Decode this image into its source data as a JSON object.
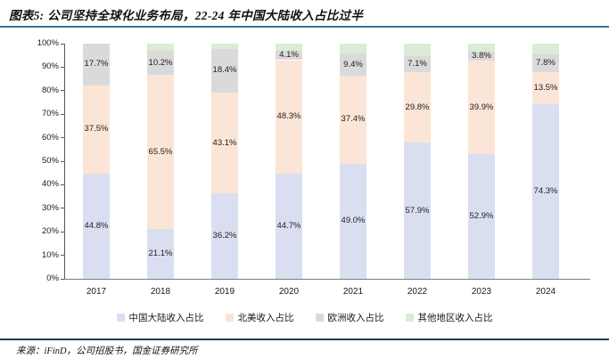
{
  "title": "图表5: 公司坚持全球化业务布局，22-24 年中国大陆收入占比过半",
  "footer": {
    "source_label": "来源：iFinD，公司招股书，国金证券研究所"
  },
  "chart_data": {
    "type": "bar",
    "stacked": true,
    "title": "图表5: 公司坚持全球化业务布局，22-24 年中国大陆收入占比过半",
    "xlabel": "",
    "ylabel": "",
    "ylim": [
      0,
      100
    ],
    "ytick_step": 10,
    "ytick_labels": [
      "0%",
      "10%",
      "20%",
      "30%",
      "40%",
      "50%",
      "60%",
      "70%",
      "80%",
      "90%",
      "100%"
    ],
    "grid": false,
    "legend_position": "bottom",
    "categories": [
      "2017",
      "2018",
      "2019",
      "2020",
      "2021",
      "2022",
      "2023",
      "2024"
    ],
    "series": [
      {
        "name": "中国大陆收入占比",
        "color": "#d9dff0",
        "show_labels": true,
        "values": [
          44.8,
          21.1,
          36.2,
          44.7,
          49.0,
          57.9,
          52.9,
          74.3
        ]
      },
      {
        "name": "北美收入占比",
        "color": "#fbe5d6",
        "show_labels": true,
        "values": [
          37.5,
          65.5,
          43.1,
          48.3,
          37.4,
          29.8,
          39.9,
          13.5
        ]
      },
      {
        "name": "欧洲收入占比",
        "color": "#dadada",
        "show_labels": true,
        "values": [
          17.7,
          10.2,
          18.4,
          4.1,
          9.4,
          7.1,
          3.8,
          7.8
        ]
      },
      {
        "name": "其他地区收入占比",
        "color": "#dcebd5",
        "show_labels": false,
        "values": [
          0.0,
          3.2,
          2.3,
          2.9,
          4.2,
          5.2,
          3.4,
          4.4
        ]
      }
    ]
  }
}
